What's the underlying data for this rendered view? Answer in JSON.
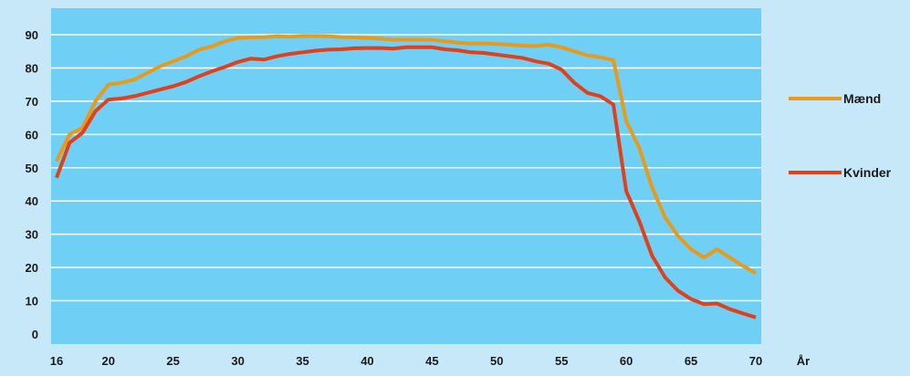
{
  "chart_data": {
    "type": "line",
    "xlabel": "År",
    "ylabel": "",
    "xlim": [
      16,
      70
    ],
    "ylim": [
      0,
      90
    ],
    "x_ticks": [
      16,
      20,
      25,
      30,
      35,
      40,
      45,
      50,
      55,
      60,
      65,
      70
    ],
    "y_ticks": [
      0,
      10,
      20,
      30,
      40,
      50,
      60,
      70,
      80,
      90
    ],
    "grid": true,
    "legend_position": "right",
    "colors": {
      "plot_background": "#6fcff4",
      "page_background": "#c7e8f8",
      "gridline": "#ffffff",
      "axis_text": "#1a1a1a"
    },
    "x": [
      16,
      17,
      18,
      19,
      20,
      21,
      22,
      23,
      24,
      25,
      26,
      27,
      28,
      29,
      30,
      31,
      32,
      33,
      34,
      35,
      36,
      37,
      38,
      39,
      40,
      41,
      42,
      43,
      44,
      45,
      46,
      47,
      48,
      49,
      50,
      51,
      52,
      53,
      54,
      55,
      56,
      57,
      58,
      59,
      60,
      61,
      62,
      63,
      64,
      65,
      66,
      67,
      68,
      69,
      70
    ],
    "series": [
      {
        "name": "Mænd",
        "color": "#e89a1c",
        "values": [
          52,
          60,
          62,
          70,
          75,
          75.5,
          76.5,
          78.5,
          80.5,
          82,
          83.5,
          85.5,
          86.5,
          88,
          89,
          89.2,
          89.3,
          89.5,
          89.4,
          89.6,
          89.6,
          89.5,
          89.3,
          89.2,
          89,
          88.8,
          88.5,
          88.5,
          88.5,
          88.4,
          88,
          87.6,
          87.3,
          87.4,
          87.2,
          87,
          86.7,
          86.6,
          87,
          86.2,
          85,
          83.8,
          83.2,
          82.4,
          64,
          56,
          44,
          35,
          29.5,
          25.5,
          23,
          25.5,
          23,
          20.5,
          18.3
        ]
      },
      {
        "name": "Kvinder",
        "color": "#e0401c",
        "values": [
          47,
          57.5,
          60.5,
          67,
          70.5,
          70.8,
          71.5,
          72.5,
          73.5,
          74.5,
          75.8,
          77.5,
          79,
          80.3,
          81.8,
          82.8,
          82.5,
          83.5,
          84.2,
          84.7,
          85.2,
          85.5,
          85.6,
          85.9,
          86,
          86,
          85.8,
          86.2,
          86.2,
          86.2,
          85.6,
          85.3,
          84.7,
          84.5,
          84,
          83.5,
          83,
          82,
          81.3,
          79.5,
          75.5,
          72.5,
          71.5,
          69,
          43,
          34,
          23.5,
          17,
          13,
          10.5,
          9,
          9.2,
          7.5,
          6.2,
          5
        ]
      }
    ]
  }
}
